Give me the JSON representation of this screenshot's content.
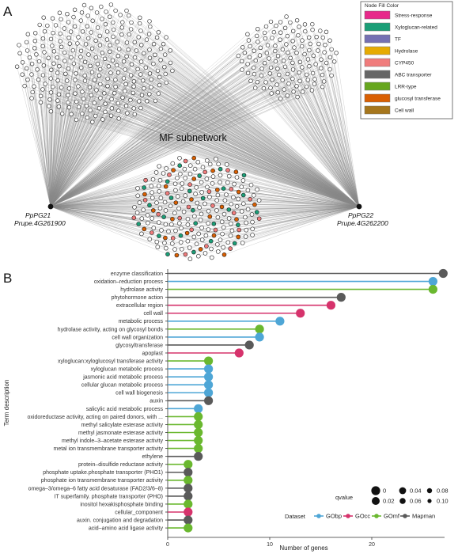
{
  "panel_a": {
    "letter": "A",
    "legend_title": "Node Fill Color",
    "legend": [
      {
        "label": "Stress-response",
        "color": "#e7298a"
      },
      {
        "label": "Xyloglucan-related",
        "color": "#1b9e77"
      },
      {
        "label": "TF",
        "color": "#7570b3"
      },
      {
        "label": "Hydrolase",
        "color": "#e6ab02"
      },
      {
        "label": "CYP450",
        "color": "#f07c7c"
      },
      {
        "label": "ABC transporter",
        "color": "#666666"
      },
      {
        "label": "LRR-type",
        "color": "#66a61e"
      },
      {
        "label": "glucosyl transferase",
        "color": "#d95f02"
      },
      {
        "label": "Cell wall",
        "color": "#a6761d"
      }
    ],
    "subnetwork_title": "MF subnetwork",
    "hub_left": {
      "name": "PpPG21",
      "id": "Prupe.4G261900"
    },
    "hub_right": {
      "name": "PpPG22",
      "id": "Prupe.4G262200"
    }
  },
  "panel_b": {
    "letter": "B",
    "chart_data": {
      "type": "lollipop",
      "xlabel": "Number of genes",
      "ylabel": "Term description",
      "xlim": [
        0,
        27.5
      ],
      "xticks": [
        0,
        10,
        20
      ],
      "grid": false,
      "dataset_colors": {
        "GObp": "#4ea6d6",
        "GOcc": "#d6336c",
        "GOmf": "#6ab82f",
        "Mapman": "#5a5a5a"
      },
      "terms": [
        {
          "term": "enzyme classification",
          "value": 27,
          "dataset": "Mapman"
        },
        {
          "term": "oxidation–reduction process",
          "value": 26,
          "dataset": "GObp"
        },
        {
          "term": "hydrolase activity",
          "value": 26,
          "dataset": "GOmf"
        },
        {
          "term": "phytohormone action",
          "value": 17,
          "dataset": "Mapman"
        },
        {
          "term": "extracellular region",
          "value": 16,
          "dataset": "GOcc"
        },
        {
          "term": "cell wall",
          "value": 13,
          "dataset": "GOcc"
        },
        {
          "term": "metabolic process",
          "value": 11,
          "dataset": "GObp"
        },
        {
          "term": "hydrolase activity, acting on glycosyl bonds",
          "value": 9,
          "dataset": "GOmf"
        },
        {
          "term": "cell wall organization",
          "value": 9,
          "dataset": "GObp"
        },
        {
          "term": "glycosyltransferase",
          "value": 8,
          "dataset": "Mapman"
        },
        {
          "term": "apoplast",
          "value": 7,
          "dataset": "GOcc"
        },
        {
          "term": "xyloglucan:xyloglucosyl transferase activity",
          "value": 4,
          "dataset": "GOmf"
        },
        {
          "term": "xyloglucan metabolic process",
          "value": 4,
          "dataset": "GObp"
        },
        {
          "term": "jasmonic acid metabolic process",
          "value": 4,
          "dataset": "GObp"
        },
        {
          "term": "cellular glucan metabolic process",
          "value": 4,
          "dataset": "GObp"
        },
        {
          "term": "cell wall biogenesis",
          "value": 4,
          "dataset": "GObp"
        },
        {
          "term": "auxin",
          "value": 4,
          "dataset": "Mapman"
        },
        {
          "term": "salicylic acid metabolic process",
          "value": 3,
          "dataset": "GObp"
        },
        {
          "term": "oxidoreductase activity, acting on paired donors, with ...",
          "value": 3,
          "dataset": "GOmf"
        },
        {
          "term": "methyl salicylate esterase activity",
          "value": 3,
          "dataset": "GOmf"
        },
        {
          "term": "methyl jasmonate esterase activity",
          "value": 3,
          "dataset": "GOmf"
        },
        {
          "term": "methyl indole–3–acetate esterase activity",
          "value": 3,
          "dataset": "GOmf"
        },
        {
          "term": "metal ion transmembrane transporter activity",
          "value": 3,
          "dataset": "GOmf"
        },
        {
          "term": "ethylene",
          "value": 3,
          "dataset": "Mapman"
        },
        {
          "term": "protein–disulfide reductase activity",
          "value": 2,
          "dataset": "GOmf"
        },
        {
          "term": "phosphate uptake.phosphate transporter (PHO1)",
          "value": 2,
          "dataset": "Mapman"
        },
        {
          "term": "phosphate ion transmembrane transporter activity",
          "value": 2,
          "dataset": "GOmf"
        },
        {
          "term": "omega–3/omega–6 fatty acid desaturase (FAD2/3/6–8)",
          "value": 2,
          "dataset": "Mapman"
        },
        {
          "term": "IT superfamily. phosphate transporter (PHO)",
          "value": 2,
          "dataset": "Mapman"
        },
        {
          "term": "inositol hexakisphosphate binding",
          "value": 2,
          "dataset": "GOmf"
        },
        {
          "term": "cellular_component",
          "value": 2,
          "dataset": "GOcc"
        },
        {
          "term": "auxin. conjugation and degradation",
          "value": 2,
          "dataset": "Mapman"
        },
        {
          "term": "acid–amino acid ligase activity",
          "value": 2,
          "dataset": "GOmf"
        }
      ],
      "legend": {
        "qvalue_title": "qvalue",
        "qvalue_items": [
          {
            "label": "0",
            "value": 0
          },
          {
            "label": "0.02",
            "value": 0.02
          },
          {
            "label": "0.04",
            "value": 0.04
          },
          {
            "label": "0.06",
            "value": 0.06
          },
          {
            "label": "0.08",
            "value": 0.08
          },
          {
            "label": "0.10",
            "value": 0.1
          }
        ],
        "dataset_title": "Dataset",
        "dataset_items": [
          "GObp",
          "GOcc",
          "GOmf",
          "Mapman"
        ]
      }
    }
  }
}
